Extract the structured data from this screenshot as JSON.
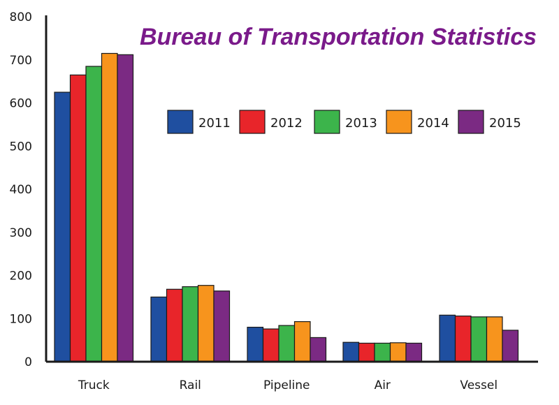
{
  "chart_data": {
    "type": "bar",
    "title": "Bureau of Transportation Statistics",
    "xlabel": "",
    "ylabel": "",
    "ylim": [
      0,
      800
    ],
    "yticks": [
      0,
      100,
      200,
      300,
      400,
      500,
      600,
      700,
      800
    ],
    "categories": [
      "Truck",
      "Rail",
      "Pipeline",
      "Air",
      "Vessel"
    ],
    "series": [
      {
        "name": "2011",
        "color": "#1f4fa0",
        "values": [
          625,
          150,
          80,
          45,
          108
        ]
      },
      {
        "name": "2012",
        "color": "#e8252a",
        "values": [
          665,
          168,
          76,
          43,
          106
        ]
      },
      {
        "name": "2013",
        "color": "#3cb44b",
        "values": [
          685,
          174,
          84,
          43,
          104
        ]
      },
      {
        "name": "2014",
        "color": "#f7941d",
        "values": [
          715,
          177,
          93,
          44,
          104
        ]
      },
      {
        "name": "2015",
        "color": "#7b2a83",
        "values": [
          712,
          164,
          56,
          43,
          73
        ]
      }
    ],
    "legend_position": "upper-right",
    "grid": false
  }
}
